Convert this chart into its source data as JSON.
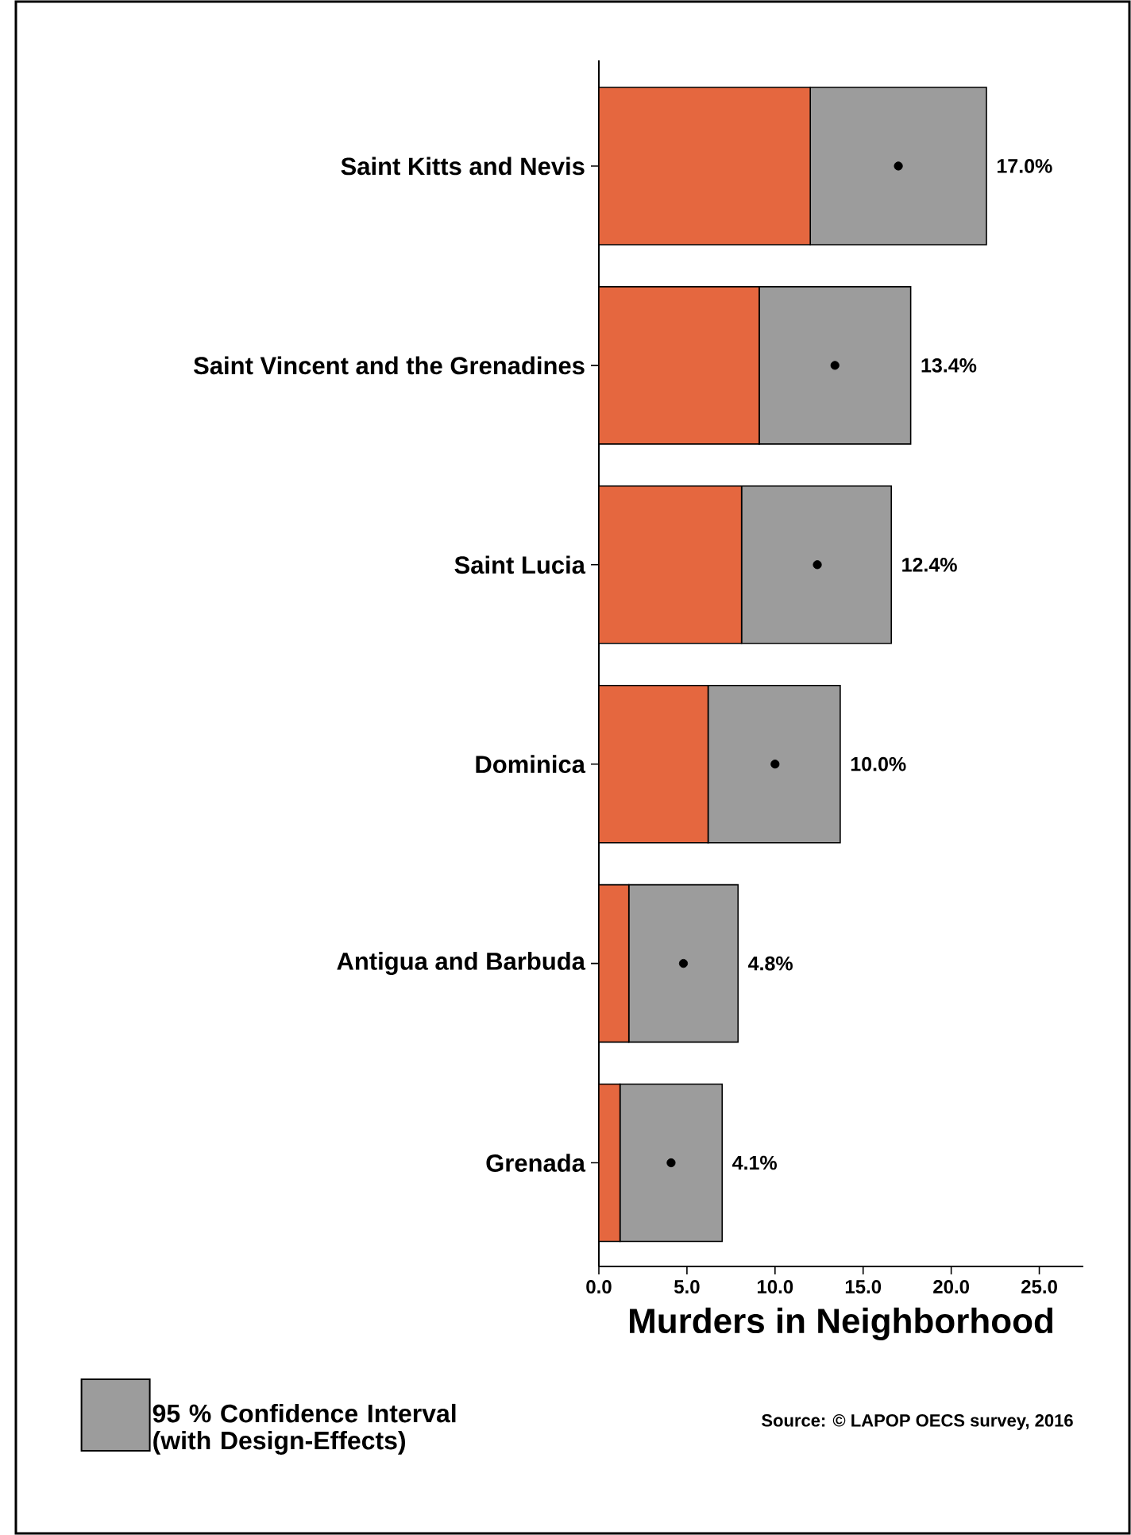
{
  "chart_data": {
    "type": "bar",
    "orientation": "horizontal",
    "stacked": true,
    "categories": [
      "Saint Kitts and Nevis",
      "Saint Vincent and the Grenadines",
      "Saint Lucia",
      "Dominica",
      "Antigua and Barbuda",
      "Grenada"
    ],
    "series": [
      {
        "color": "#e5673f",
        "values": [
          12.0,
          9.1,
          8.1,
          6.2,
          1.7,
          1.2
        ]
      },
      {
        "name": "95 % Confidence Interval (with Design-Effects)",
        "color": "#9c9c9c",
        "values": [
          10.0,
          8.6,
          8.5,
          7.5,
          6.2,
          5.8
        ]
      },
      {
        "type": "scatter",
        "color": "#000000",
        "values": [
          17.0,
          13.4,
          12.4,
          10.0,
          4.8,
          4.1
        ]
      }
    ],
    "xlabel": "Murders in Neighborhood",
    "xlim": [
      0,
      27.5
    ],
    "xticks": [
      {
        "value": 0,
        "label": "0.0"
      },
      {
        "value": 5,
        "label": "5.0"
      },
      {
        "value": 10,
        "label": "10.0"
      },
      {
        "value": 15,
        "label": "15.0"
      },
      {
        "value": 20,
        "label": "20.0"
      },
      {
        "value": 25,
        "label": "25.0"
      }
    ],
    "legend": "bottom left",
    "annotations": [
      {
        "text": "17.0%",
        "x": 22.0,
        "y": "Saint Kitts and Nevis"
      },
      {
        "text": "13.4%",
        "x": 17.7,
        "y": "Saint Vincent and the Grenadines"
      },
      {
        "text": "12.4%",
        "x": 16.6,
        "y": "Saint Lucia"
      },
      {
        "text": "10.0%",
        "x": 13.7,
        "y": "Dominica"
      },
      {
        "text": "4.8%",
        "x": 7.9,
        "y": "Antigua and Barbuda"
      },
      {
        "text": "4.1%",
        "x": 7.0,
        "y": "Grenada"
      },
      "Source: © LAPOP OECS survey, 2016"
    ]
  }
}
